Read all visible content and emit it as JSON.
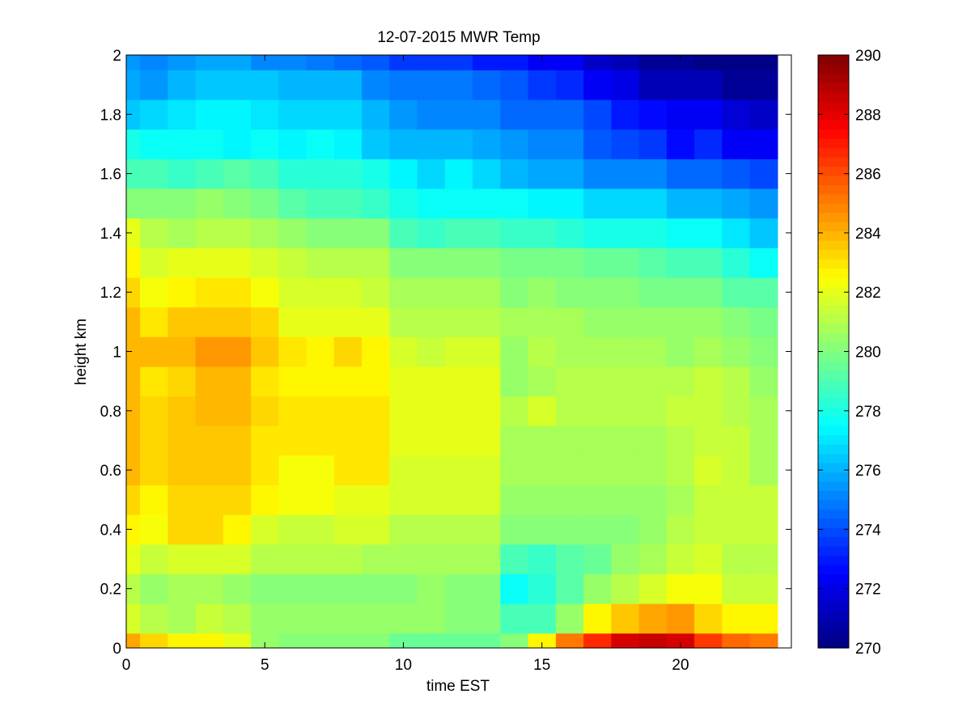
{
  "chart_data": {
    "type": "heatmap",
    "title": "12-07-2015 MWR Temp",
    "xlabel": "time EST",
    "ylabel": "height km",
    "xlim": [
      0,
      24
    ],
    "ylim": [
      0,
      2
    ],
    "xticks": [
      "0",
      "5",
      "10",
      "15",
      "20"
    ],
    "yticks": [
      "0",
      "0.2",
      "0.4",
      "0.6",
      "0.8",
      "1",
      "1.2",
      "1.4",
      "1.6",
      "1.8",
      "2"
    ],
    "colorbar": {
      "colormap": "jet",
      "range": [
        270,
        290
      ],
      "ticks": [
        "270",
        "272",
        "274",
        "276",
        "278",
        "280",
        "282",
        "284",
        "286",
        "288",
        "290"
      ]
    },
    "x": [
      0,
      1,
      2,
      3,
      4,
      5,
      6,
      7,
      8,
      9,
      10,
      11,
      12,
      13,
      14,
      15,
      16,
      17,
      18,
      19,
      20,
      21,
      22,
      23
    ],
    "y": [
      0,
      0.1,
      0.2,
      0.3,
      0.4,
      0.5,
      0.6,
      0.7,
      0.8,
      0.9,
      1.0,
      1.1,
      1.2,
      1.3,
      1.4,
      1.5,
      1.6,
      1.7,
      1.8,
      1.9,
      2.0
    ],
    "z": [
      [
        284.2,
        283.4,
        282.7,
        282.5,
        282.0,
        280.6,
        280.2,
        280.2,
        280.2,
        280.2,
        279.4,
        279.4,
        279.4,
        279.4,
        280.2,
        282.5,
        285.2,
        286.6,
        288.4,
        288.6,
        288.3,
        286.3,
        285.6,
        285.3
      ],
      [
        281.6,
        281.0,
        280.9,
        281.4,
        281.0,
        280.4,
        280.4,
        280.4,
        280.4,
        280.4,
        280.4,
        280.4,
        280.2,
        280.2,
        278.8,
        278.8,
        280.6,
        282.6,
        283.5,
        284.2,
        284.5,
        283.4,
        282.5,
        282.5
      ],
      [
        281.0,
        280.4,
        280.8,
        280.7,
        280.6,
        280.1,
        280.2,
        280.2,
        280.2,
        280.2,
        280.2,
        280.6,
        280.2,
        280.2,
        277.8,
        278.2,
        279.1,
        280.5,
        281.1,
        281.7,
        282.3,
        282.4,
        281.4,
        281.4
      ],
      [
        282.0,
        281.4,
        281.8,
        281.8,
        281.8,
        281.0,
        281.0,
        281.0,
        281.0,
        280.8,
        280.9,
        280.9,
        280.9,
        280.9,
        278.8,
        278.6,
        279.3,
        279.5,
        280.6,
        280.8,
        281.4,
        281.6,
        281.2,
        281.2
      ],
      [
        282.5,
        282.4,
        283.3,
        283.3,
        282.6,
        281.6,
        281.5,
        281.5,
        281.6,
        281.6,
        281.2,
        281.2,
        281.2,
        281.2,
        280.2,
        280.2,
        280.3,
        280.3,
        280.3,
        280.5,
        281.0,
        281.4,
        281.4,
        281.4
      ],
      [
        283.4,
        282.6,
        283.3,
        283.3,
        283.3,
        282.5,
        282.3,
        282.3,
        282.0,
        282.0,
        281.6,
        281.8,
        281.8,
        281.6,
        280.4,
        280.4,
        280.4,
        280.4,
        280.4,
        280.4,
        280.8,
        281.4,
        281.4,
        281.4
      ],
      [
        283.8,
        283.2,
        283.6,
        283.6,
        283.6,
        283.0,
        282.4,
        282.4,
        283.0,
        283.0,
        281.8,
        281.8,
        281.8,
        281.8,
        280.8,
        280.8,
        280.8,
        280.8,
        280.8,
        280.8,
        281.1,
        281.6,
        281.4,
        280.9
      ],
      [
        283.8,
        283.2,
        283.6,
        283.6,
        283.6,
        283.0,
        283.0,
        283.0,
        283.0,
        283.0,
        282.0,
        282.0,
        282.0,
        282.0,
        280.8,
        280.8,
        280.8,
        280.8,
        280.8,
        280.8,
        281.2,
        281.4,
        281.4,
        280.9
      ],
      [
        284.0,
        283.2,
        283.6,
        284.0,
        284.0,
        283.2,
        283.0,
        283.0,
        283.0,
        283.0,
        282.0,
        282.0,
        282.0,
        282.0,
        281.0,
        281.6,
        281.0,
        281.0,
        281.2,
        281.2,
        281.4,
        281.4,
        281.2,
        280.9
      ],
      [
        284.0,
        283.0,
        283.4,
        283.8,
        283.8,
        283.0,
        282.6,
        282.6,
        282.6,
        282.6,
        282.0,
        282.0,
        282.0,
        282.0,
        280.4,
        280.9,
        281.1,
        281.1,
        281.1,
        281.1,
        281.1,
        281.3,
        281.0,
        280.4
      ],
      [
        284.0,
        283.8,
        284.0,
        284.4,
        284.4,
        283.6,
        282.9,
        282.6,
        283.2,
        282.6,
        281.8,
        281.4,
        281.8,
        281.8,
        280.6,
        281.0,
        280.8,
        280.8,
        280.8,
        280.8,
        280.6,
        280.8,
        280.6,
        280.0
      ],
      [
        283.8,
        282.9,
        283.6,
        283.6,
        283.6,
        283.3,
        282.0,
        282.0,
        282.0,
        282.0,
        281.2,
        281.2,
        281.2,
        281.2,
        280.8,
        280.8,
        280.8,
        280.6,
        280.4,
        280.4,
        280.4,
        280.4,
        280.0,
        279.8
      ],
      [
        283.2,
        282.3,
        282.6,
        283.0,
        283.0,
        282.4,
        281.8,
        281.6,
        281.6,
        281.4,
        280.8,
        280.8,
        280.8,
        280.8,
        280.2,
        280.6,
        280.2,
        280.0,
        280.0,
        279.9,
        279.8,
        279.8,
        279.3,
        279.1
      ],
      [
        282.8,
        281.6,
        281.9,
        282.1,
        282.1,
        281.8,
        281.3,
        281.0,
        281.0,
        281.0,
        280.2,
        280.2,
        280.2,
        280.2,
        279.9,
        279.9,
        279.8,
        279.6,
        279.4,
        279.2,
        279.0,
        279.0,
        278.4,
        277.6
      ],
      [
        282.0,
        281.0,
        280.8,
        281.2,
        281.2,
        280.8,
        280.4,
        280.2,
        280.2,
        280.0,
        279.0,
        278.6,
        278.8,
        278.8,
        278.5,
        278.5,
        278.2,
        278.0,
        278.0,
        278.0,
        277.8,
        277.6,
        277.0,
        276.4
      ],
      [
        280.3,
        280.0,
        280.1,
        280.4,
        280.0,
        279.8,
        279.3,
        279.0,
        279.0,
        278.6,
        278.0,
        277.6,
        277.8,
        277.6,
        277.5,
        277.2,
        277.2,
        276.8,
        276.8,
        276.8,
        276.2,
        276.2,
        275.8,
        275.4
      ],
      [
        279.0,
        278.8,
        278.6,
        278.8,
        279.3,
        279.0,
        278.4,
        278.2,
        278.2,
        278.0,
        277.2,
        276.8,
        277.2,
        276.6,
        276.2,
        275.8,
        275.8,
        275.3,
        275.1,
        275.1,
        274.6,
        274.6,
        274.2,
        273.9
      ],
      [
        278.0,
        277.8,
        277.8,
        277.6,
        277.4,
        277.8,
        277.2,
        277.6,
        277.2,
        276.4,
        276.2,
        276.2,
        276.2,
        275.9,
        275.5,
        275.2,
        275.0,
        274.2,
        273.9,
        273.5,
        272.6,
        273.2,
        272.4,
        272.2
      ],
      [
        276.4,
        276.8,
        277.0,
        277.2,
        277.2,
        277.0,
        276.6,
        276.6,
        276.6,
        276.2,
        275.6,
        275.2,
        275.2,
        275.0,
        274.6,
        274.6,
        274.6,
        274.0,
        273.0,
        272.8,
        272.4,
        272.4,
        271.8,
        271.4
      ],
      [
        275.8,
        275.6,
        276.0,
        276.3,
        276.3,
        276.3,
        276.0,
        276.0,
        276.0,
        275.3,
        274.8,
        274.8,
        274.8,
        274.6,
        274.2,
        273.6,
        273.3,
        272.2,
        272.0,
        271.2,
        271.0,
        271.0,
        270.6,
        270.4
      ],
      [
        275.4,
        275.2,
        275.4,
        275.7,
        275.8,
        275.2,
        275.0,
        274.8,
        274.6,
        274.2,
        273.6,
        273.5,
        273.5,
        273.0,
        273.0,
        272.3,
        272.2,
        271.5,
        271.2,
        270.6,
        270.6,
        270.3,
        270.2,
        270.2
      ]
    ]
  }
}
